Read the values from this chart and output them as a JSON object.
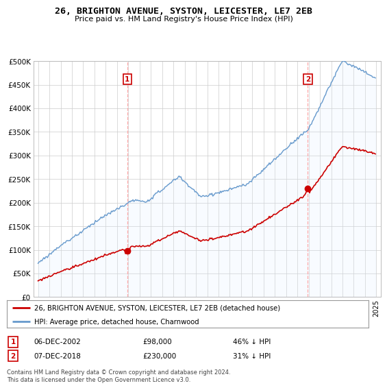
{
  "title": "26, BRIGHTON AVENUE, SYSTON, LEICESTER, LE7 2EB",
  "subtitle": "Price paid vs. HM Land Registry's House Price Index (HPI)",
  "legend_property": "26, BRIGHTON AVENUE, SYSTON, LEICESTER, LE7 2EB (detached house)",
  "legend_hpi": "HPI: Average price, detached house, Charnwood",
  "footnote": "Contains HM Land Registry data © Crown copyright and database right 2024.\nThis data is licensed under the Open Government Licence v3.0.",
  "sale1_date": "06-DEC-2002",
  "sale1_price": 98000,
  "sale1_label": "46% ↓ HPI",
  "sale2_date": "07-DEC-2018",
  "sale2_price": 230000,
  "sale2_label": "31% ↓ HPI",
  "property_color": "#cc0000",
  "hpi_color": "#6699cc",
  "hpi_fill_color": "#ddeeff",
  "vline_color": "#ffaaaa",
  "ylim_max": 500000,
  "yticks": [
    0,
    50000,
    100000,
    150000,
    200000,
    250000,
    300000,
    350000,
    400000,
    450000,
    500000
  ],
  "xstart": 1995,
  "xend": 2025,
  "background_color": "#ffffff",
  "grid_color": "#cccccc"
}
